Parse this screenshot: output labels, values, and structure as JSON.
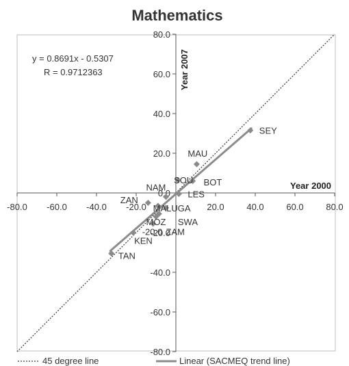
{
  "chart_data": {
    "type": "scatter",
    "title": "Mathematics",
    "xlabel": "Year 2000",
    "ylabel": "Year 2007",
    "xlim": [
      -80,
      80
    ],
    "ylim": [
      -80,
      80
    ],
    "xticks": [
      "-80.0",
      "-60.0",
      "-40.0",
      "-20.0",
      "20.0",
      "40.0",
      "60.0",
      "80.0"
    ],
    "yticks": [
      "80.0",
      "60.0",
      "40.0",
      "20.0",
      "0.0",
      "-20.0",
      "-40.0",
      "-60.0",
      "-80.0"
    ],
    "grid": false,
    "equation": "y = 0.8691x - 0.5307",
    "r_value": "R = 0.9712363",
    "points": [
      {
        "label": "SEY",
        "x": 37.5,
        "y": 31.5
      },
      {
        "label": "MAU",
        "x": 10.5,
        "y": 14.5
      },
      {
        "label": "BOT",
        "x": 8.5,
        "y": 6.0
      },
      {
        "label": "SOU",
        "x": 1.0,
        "y": 6.5
      },
      {
        "label": "LES",
        "x": 1.5,
        "y": -0.5
      },
      {
        "label": "NAM",
        "x": -5.0,
        "y": -2.0
      },
      {
        "label": "ZAN",
        "x": -14.0,
        "y": -5.0
      },
      {
        "label": "MAL",
        "x": -9.0,
        "y": -6.5
      },
      {
        "label": "UGA",
        "x": -5.0,
        "y": -7.5
      },
      {
        "label": "MOZ",
        "x": -10.0,
        "y": -12.0
      },
      {
        "label": "SWA",
        "x": -8.5,
        "y": -10.5
      },
      {
        "label": "ZAM",
        "x": -11.5,
        "y": -15.5
      },
      {
        "label": "KEN",
        "x": -21.5,
        "y": -20.0
      },
      {
        "label": "TAN",
        "x": -32.5,
        "y": -30.5
      }
    ],
    "label_texts": [
      {
        "text": "SEY",
        "x": 42,
        "y": 31.5
      },
      {
        "text": "MAU",
        "x": 6,
        "y": 20
      },
      {
        "text": "BOT",
        "x": 14,
        "y": 5.5
      },
      {
        "text": "SOU",
        "x": -1,
        "y": 6.5
      },
      {
        "text": "LES",
        "x": 6,
        "y": -0.5
      },
      {
        "text": "NAM",
        "x": -15,
        "y": 3
      },
      {
        "text": "ZAN",
        "x": -28,
        "y": -3.5
      },
      {
        "text": "MALUGA",
        "x": -11.5,
        "y": -7.5
      },
      {
        "text": "MOZ",
        "x": -15,
        "y": -14.5
      },
      {
        "text": "SWA",
        "x": 1,
        "y": -14.5
      },
      {
        "text": "-20.0",
        "x": -17,
        "y": -19.5
      },
      {
        "text": "ZAM",
        "x": -5,
        "y": -19.5
      },
      {
        "text": "KEN",
        "x": -21,
        "y": -24
      },
      {
        "text": "TAN",
        "x": -29,
        "y": -31.5
      }
    ],
    "trend_line": {
      "x": [
        -33,
        38
      ],
      "y": [
        -29.2,
        32.5
      ]
    },
    "reference_line": {
      "x": [
        -80,
        80
      ],
      "y": [
        -80,
        80
      ]
    },
    "legend": [
      {
        "name": "45 degree line",
        "style": "dotted"
      },
      {
        "name": "Linear (SACMEQ trend line)",
        "style": "solid"
      }
    ],
    "legend_position": "bottom",
    "colors": {
      "marker": "#8a8a8a",
      "trend": "#8c8c8c",
      "reference": "#333333",
      "axes": "#555555",
      "frame": "#bdbdbd"
    }
  }
}
